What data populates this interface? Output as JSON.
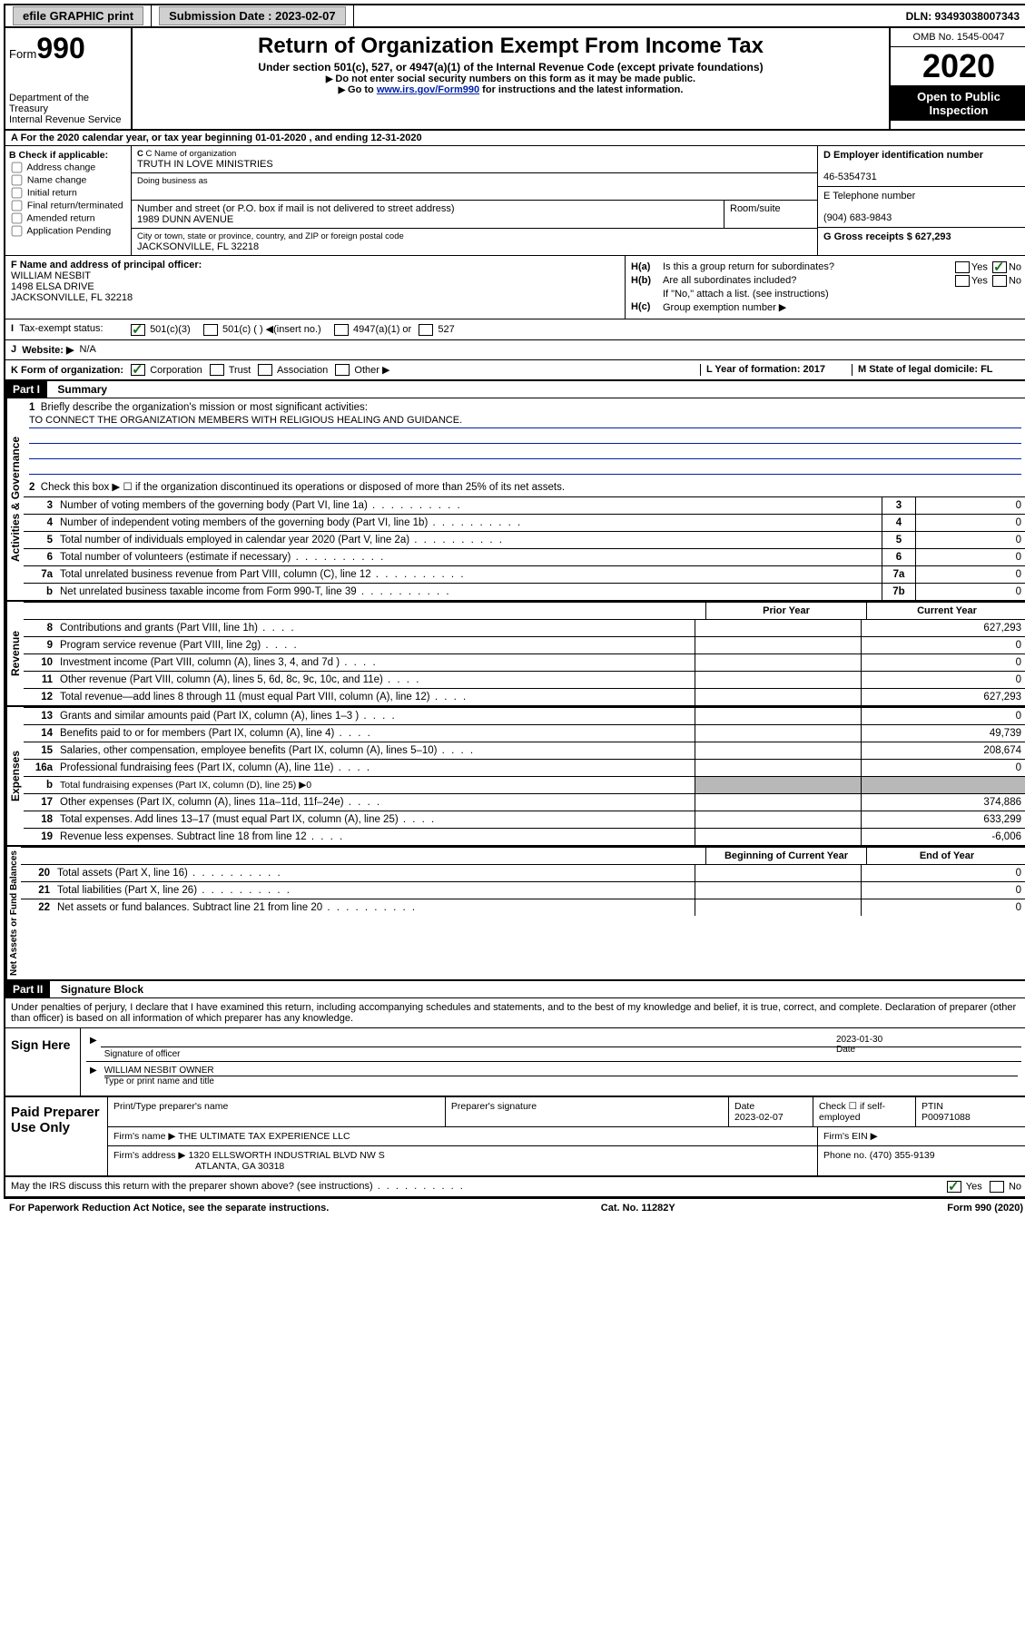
{
  "top_bar": {
    "efile_label": "efile GRAPHIC print",
    "submission_label": "Submission Date : 2023-02-07",
    "dln_label": "DLN: 93493038007343"
  },
  "header": {
    "form_label": "Form",
    "form_number": "990",
    "dept1": "Department of the Treasury",
    "dept2": "Internal Revenue Service",
    "title": "Return of Organization Exempt From Income Tax",
    "subtitle": "Under section 501(c), 527, or 4947(a)(1) of the Internal Revenue Code (except private foundations)",
    "note1": "Do not enter social security numbers on this form as it may be made public.",
    "note2_pre": "Go to ",
    "note2_link": "www.irs.gov/Form990",
    "note2_post": " for instructions and the latest information.",
    "omb": "OMB No. 1545-0047",
    "year": "2020",
    "inspection": "Open to Public Inspection"
  },
  "row_a": {
    "text": "A For the 2020 calendar year, or tax year beginning 01-01-2020    , and ending 12-31-2020"
  },
  "section_b": {
    "label": "B Check if applicable:",
    "opts": [
      "Address change",
      "Name change",
      "Initial return",
      "Final return/terminated",
      "Amended return",
      "Application Pending"
    ]
  },
  "section_c": {
    "name_label": "C Name of organization",
    "org_name": "TRUTH IN LOVE MINISTRIES",
    "dba_label": "Doing business as",
    "street_label": "Number and street (or P.O. box if mail is not delivered to street address)",
    "room_label": "Room/suite",
    "street": "1989 DUNN AVENUE",
    "city_label": "City or town, state or province, country, and ZIP or foreign postal code",
    "city": "JACKSONVILLE, FL  32218"
  },
  "section_d": {
    "ein_label": "D Employer identification number",
    "ein": "46-5354731",
    "phone_label": "E Telephone number",
    "phone": "(904) 683-9843",
    "gross_label": "G Gross receipts $ 627,293"
  },
  "section_f": {
    "label": "F Name and address of principal officer:",
    "name": "WILLIAM NESBIT",
    "addr1": "1498 ELSA DRIVE",
    "addr2": "JACKSONVILLE, FL  32218"
  },
  "section_h": {
    "a_label": "H(a)",
    "a_text": "Is this a group return for subordinates?",
    "b_label": "H(b)",
    "b_text": "Are all subordinates included?",
    "note": "If \"No,\" attach a list. (see instructions)",
    "c_label": "H(c)",
    "c_text": "Group exemption number ▶",
    "yes": "Yes",
    "no": "No"
  },
  "row_i": {
    "label": "I",
    "tax_status": "Tax-exempt status:",
    "c3": "501(c)(3)",
    "c_other": "501(c) (   ) ◀(insert no.)",
    "a1": "4947(a)(1) or",
    "s527": "527"
  },
  "row_j": {
    "label": "J",
    "website": "Website: ▶",
    "value": "N/A"
  },
  "row_k": {
    "label": "K Form of organization:",
    "corp": "Corporation",
    "trust": "Trust",
    "assoc": "Association",
    "other": "Other ▶",
    "l_label": "L Year of formation: 2017",
    "m_label": "M State of legal domicile: FL"
  },
  "part1": {
    "header": "Part I",
    "title": "Summary",
    "q1": "Briefly describe the organization's mission or most significant activities:",
    "mission": "TO CONNECT THE ORGANIZATION MEMBERS WITH RELIGIOUS HEALING AND GUIDANCE.",
    "q2": "Check this box ▶ ☐  if the organization discontinued its operations or disposed of more than 25% of its net assets.",
    "lines_gov": [
      {
        "n": "3",
        "d": "Number of voting members of the governing body (Part VI, line 1a)",
        "bn": "3",
        "v": "0"
      },
      {
        "n": "4",
        "d": "Number of independent voting members of the governing body (Part VI, line 1b)",
        "bn": "4",
        "v": "0"
      },
      {
        "n": "5",
        "d": "Total number of individuals employed in calendar year 2020 (Part V, line 2a)",
        "bn": "5",
        "v": "0"
      },
      {
        "n": "6",
        "d": "Total number of volunteers (estimate if necessary)",
        "bn": "6",
        "v": "0"
      },
      {
        "n": "7a",
        "d": "Total unrelated business revenue from Part VIII, column (C), line 12",
        "bn": "7a",
        "v": "0"
      },
      {
        "n": "b",
        "d": "Net unrelated business taxable income from Form 990-T, line 39",
        "bn": "7b",
        "v": "0"
      }
    ],
    "col_prior": "Prior Year",
    "col_current": "Current Year",
    "lines_rev": [
      {
        "n": "8",
        "d": "Contributions and grants (Part VIII, line 1h)",
        "p": "",
        "c": "627,293"
      },
      {
        "n": "9",
        "d": "Program service revenue (Part VIII, line 2g)",
        "p": "",
        "c": "0"
      },
      {
        "n": "10",
        "d": "Investment income (Part VIII, column (A), lines 3, 4, and 7d )",
        "p": "",
        "c": "0"
      },
      {
        "n": "11",
        "d": "Other revenue (Part VIII, column (A), lines 5, 6d, 8c, 9c, 10c, and 11e)",
        "p": "",
        "c": "0"
      },
      {
        "n": "12",
        "d": "Total revenue—add lines 8 through 11 (must equal Part VIII, column (A), line 12)",
        "p": "",
        "c": "627,293"
      }
    ],
    "lines_exp": [
      {
        "n": "13",
        "d": "Grants and similar amounts paid (Part IX, column (A), lines 1–3 )",
        "p": "",
        "c": "0"
      },
      {
        "n": "14",
        "d": "Benefits paid to or for members (Part IX, column (A), line 4)",
        "p": "",
        "c": "49,739"
      },
      {
        "n": "15",
        "d": "Salaries, other compensation, employee benefits (Part IX, column (A), lines 5–10)",
        "p": "",
        "c": "208,674"
      },
      {
        "n": "16a",
        "d": "Professional fundraising fees (Part IX, column (A), line 11e)",
        "p": "",
        "c": "0"
      },
      {
        "n": "b",
        "d": "Total fundraising expenses (Part IX, column (D), line 25) ▶0",
        "grey": true
      },
      {
        "n": "17",
        "d": "Other expenses (Part IX, column (A), lines 11a–11d, 11f–24e)",
        "p": "",
        "c": "374,886"
      },
      {
        "n": "18",
        "d": "Total expenses. Add lines 13–17 (must equal Part IX, column (A), line 25)",
        "p": "",
        "c": "633,299"
      },
      {
        "n": "19",
        "d": "Revenue less expenses. Subtract line 18 from line 12",
        "p": "",
        "c": "-6,006"
      }
    ],
    "col_begin": "Beginning of Current Year",
    "col_end": "End of Year",
    "lines_net": [
      {
        "n": "20",
        "d": "Total assets (Part X, line 16)",
        "p": "",
        "c": "0"
      },
      {
        "n": "21",
        "d": "Total liabilities (Part X, line 26)",
        "p": "",
        "c": "0"
      },
      {
        "n": "22",
        "d": "Net assets or fund balances. Subtract line 21 from line 20",
        "p": "",
        "c": "0"
      }
    ],
    "vert_gov": "Activities & Governance",
    "vert_rev": "Revenue",
    "vert_exp": "Expenses",
    "vert_net": "Net Assets or Fund Balances"
  },
  "part2": {
    "header": "Part II",
    "title": "Signature Block",
    "perjury": "Under penalties of perjury, I declare that I have examined this return, including accompanying schedules and statements, and to the best of my knowledge and belief, it is true, correct, and complete. Declaration of preparer (other than officer) is based on all information of which preparer has any knowledge.",
    "sign_here": "Sign Here",
    "sig_officer": "Signature of officer",
    "sig_date": "2023-01-30",
    "date_label": "Date",
    "officer_name": "WILLIAM NESBIT OWNER",
    "type_name": "Type or print name and title",
    "paid_label": "Paid Preparer Use Only",
    "prep_name_label": "Print/Type preparer's name",
    "prep_sig_label": "Preparer's signature",
    "prep_date_label": "Date",
    "prep_date": "2023-02-07",
    "check_self": "Check ☐ if self-employed",
    "ptin_label": "PTIN",
    "ptin": "P00971088",
    "firm_name_label": "Firm's name    ▶",
    "firm_name": "THE ULTIMATE TAX EXPERIENCE LLC",
    "firm_ein_label": "Firm's EIN ▶",
    "firm_addr_label": "Firm's address ▶",
    "firm_addr1": "1320 ELLSWORTH INDUSTRIAL BLVD NW S",
    "firm_addr2": "ATLANTA, GA  30318",
    "firm_phone_label": "Phone no. (470) 355-9139",
    "discuss": "May the IRS discuss this return with the preparer shown above? (see instructions)",
    "yes": "Yes",
    "no": "No"
  },
  "footer": {
    "paperwork": "For Paperwork Reduction Act Notice, see the separate instructions.",
    "cat": "Cat. No. 11282Y",
    "form": "Form 990 (2020)"
  }
}
